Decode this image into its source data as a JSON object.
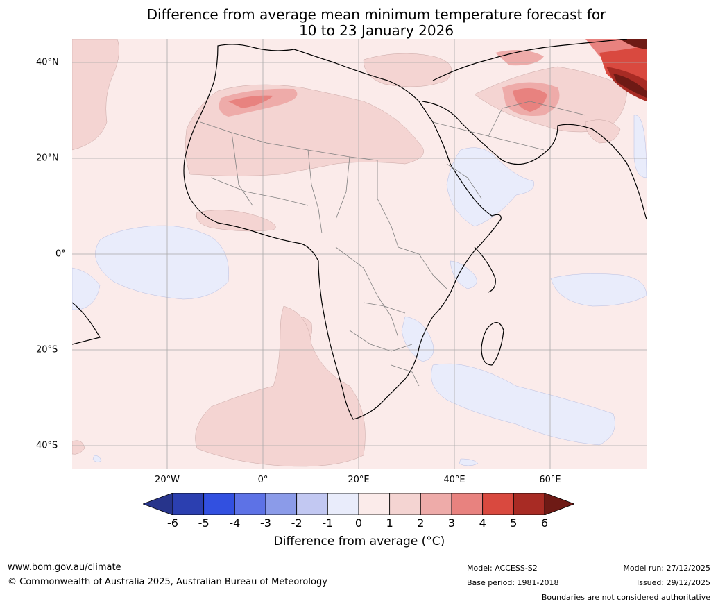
{
  "title": {
    "line1": "Difference from average mean minimum temperature forecast for",
    "line2": "10 to 23 January 2026"
  },
  "map": {
    "lat_labels": [
      "40°N",
      "20°N",
      "0°",
      "20°S",
      "40°S"
    ],
    "lon_labels": [
      "20°W",
      "0°",
      "20°E",
      "40°E",
      "60°E"
    ],
    "colors": {
      "ocean_bg": "#fbebea",
      "class_neg1_0": "#e9ecfb",
      "class_neg2_neg1": "#c0c7f0",
      "class_0_1": "#fbebea",
      "class_1_2": "#f4d4d2",
      "class_2_3": "#eeaba9",
      "class_3_4": "#e8827f",
      "class_4_5": "#d9493f",
      "class_5_6": "#a82b24",
      "class_6_plus": "#6e1a15"
    }
  },
  "colorbar": {
    "ticks": [
      "-6",
      "-5",
      "-4",
      "-3",
      "-2",
      "-1",
      "0",
      "1",
      "2",
      "3",
      "4",
      "5",
      "6"
    ],
    "colors": [
      "#27348b",
      "#2b3fb0",
      "#3250e0",
      "#5d72e6",
      "#8b9be9",
      "#c2c8f2",
      "#e9ecfb",
      "#fbebea",
      "#f4d4d2",
      "#eeaba9",
      "#e8827f",
      "#d9493f",
      "#a82b24",
      "#6e1a15"
    ],
    "label": "Difference from average (°C)"
  },
  "footer": {
    "url": "www.bom.gov.au/climate",
    "copyright": "© Commonwealth of Australia 2025, Australian Bureau of Meteorology",
    "model": "Model: ACCESS-S2",
    "base_period": "Base period: 1981-2018",
    "model_run": "Model run: 27/12/2025",
    "issued": "Issued: 29/12/2025",
    "disclaimer": "Boundaries are not considered authoritative"
  }
}
